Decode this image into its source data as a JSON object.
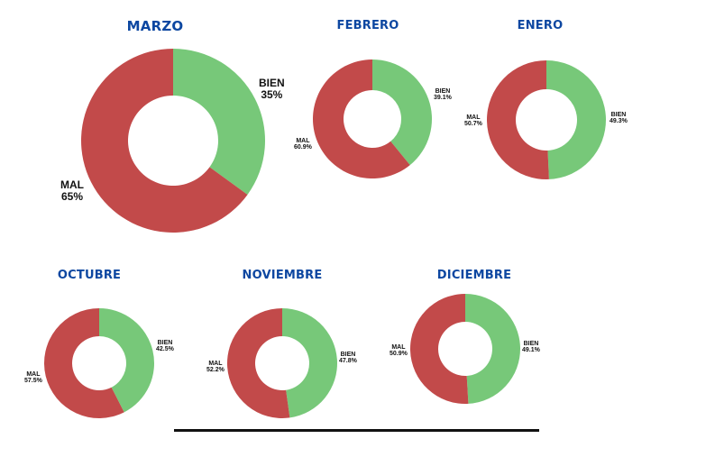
{
  "colors": {
    "bien": "#77c879",
    "mal": "#c24a4a",
    "title": "#0d47a1",
    "label": "#111111"
  },
  "chart_data": [
    {
      "type": "pie",
      "title": "MARZO",
      "categories": [
        "BIEN",
        "MAL"
      ],
      "values": [
        35,
        65
      ],
      "labels": {
        "bien": "35%",
        "mal": "65%"
      }
    },
    {
      "type": "pie",
      "title": "FEBRERO",
      "categories": [
        "BIEN",
        "MAL"
      ],
      "values": [
        39.1,
        60.9
      ],
      "labels": {
        "bien": "39.1%",
        "mal": "60.9%"
      }
    },
    {
      "type": "pie",
      "title": "ENERO",
      "categories": [
        "BIEN",
        "MAL"
      ],
      "values": [
        49.3,
        50.7
      ],
      "labels": {
        "bien": "49.3%",
        "mal": "50.7%"
      }
    },
    {
      "type": "pie",
      "title": "OCTUBRE",
      "categories": [
        "BIEN",
        "MAL"
      ],
      "values": [
        42.5,
        57.5
      ],
      "labels": {
        "bien": "42.5%",
        "mal": "57.5%"
      }
    },
    {
      "type": "pie",
      "title": "NOVIEMBRE",
      "categories": [
        "BIEN",
        "MAL"
      ],
      "values": [
        47.8,
        52.2
      ],
      "labels": {
        "bien": "47.8%",
        "mal": "52.2%"
      }
    },
    {
      "type": "pie",
      "title": "DICIEMBRE",
      "categories": [
        "BIEN",
        "MAL"
      ],
      "values": [
        49.1,
        50.9
      ],
      "labels": {
        "bien": "49.1%",
        "mal": "50.9%"
      }
    }
  ]
}
